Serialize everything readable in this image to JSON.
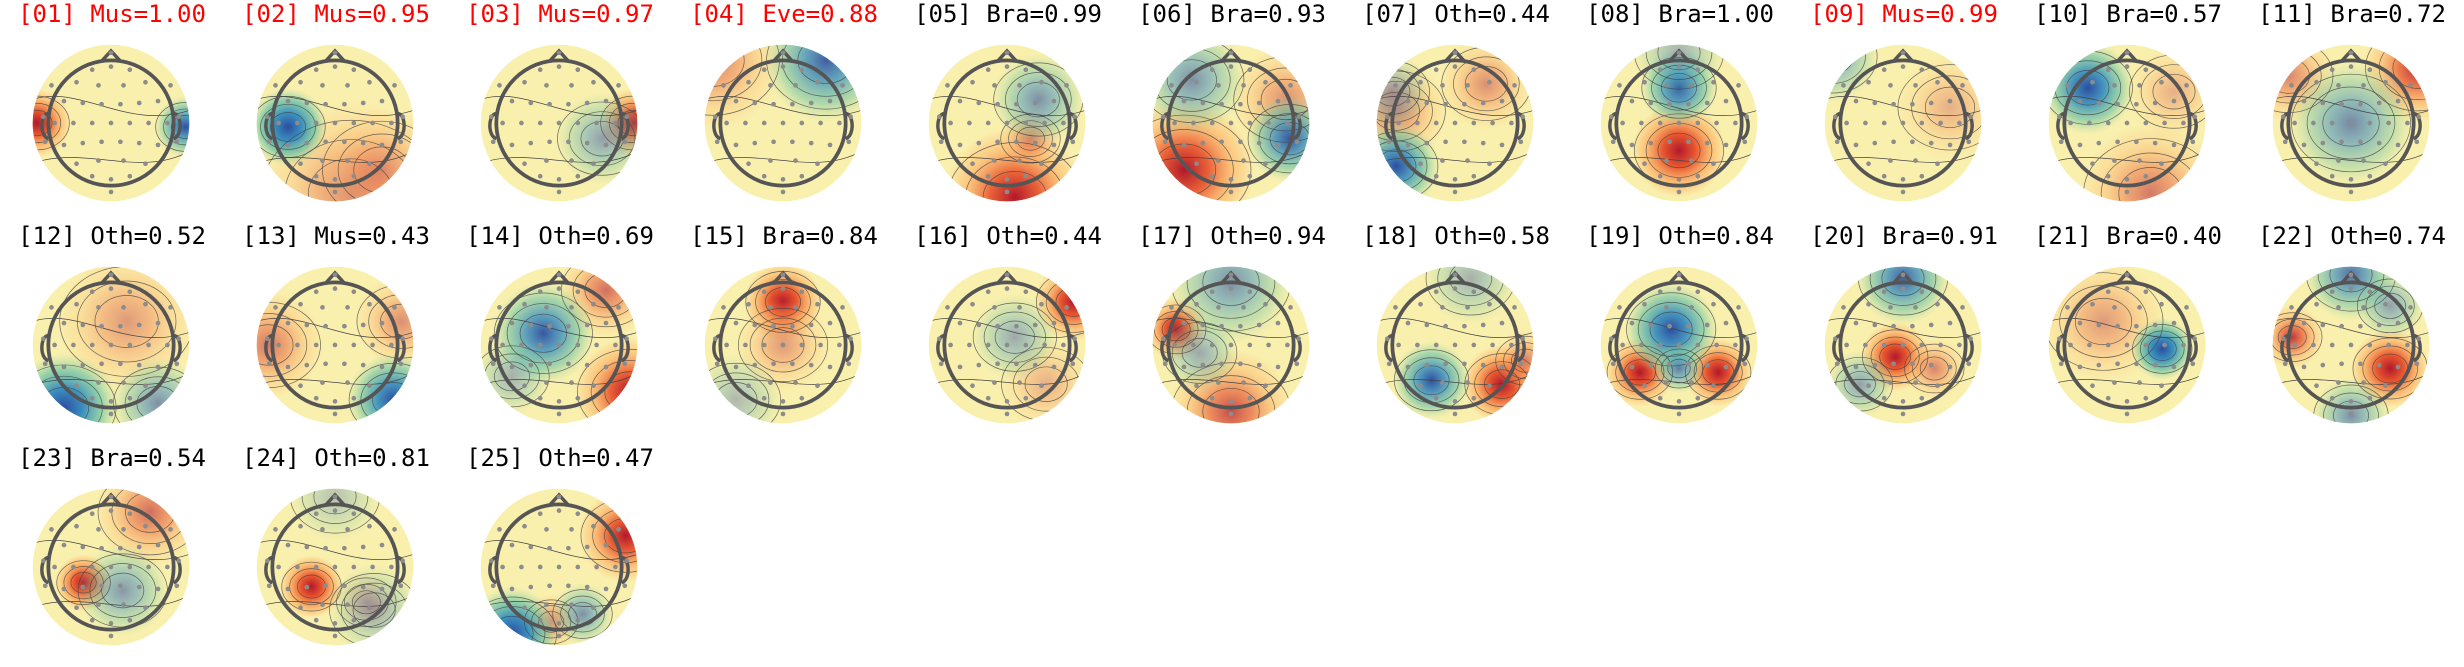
{
  "figure": {
    "components": [
      {
        "label": "[01] Mus=1.00",
        "rejected": true,
        "hot": [
          [
            -0.95,
            0.0,
            1.3,
            0.22
          ]
        ],
        "cold": [
          [
            0.95,
            0.05,
            1.0,
            0.2
          ]
        ]
      },
      {
        "label": "[02] Mus=0.95",
        "rejected": true,
        "hot": [
          [
            0.2,
            0.9,
            0.45,
            0.6
          ],
          [
            0.6,
            0.6,
            0.35,
            0.4
          ]
        ],
        "cold": [
          [
            -0.6,
            0.05,
            1.3,
            0.25
          ]
        ]
      },
      {
        "label": "[03] Mus=0.97",
        "rejected": true,
        "hot": [
          [
            0.95,
            0.0,
            1.3,
            0.22
          ]
        ],
        "cold": [
          [
            0.55,
            0.2,
            0.5,
            0.3
          ]
        ]
      },
      {
        "label": "[04] Eve=0.88",
        "rejected": true,
        "hot": [
          [
            -0.9,
            -0.8,
            0.5,
            0.45
          ]
        ],
        "cold": [
          [
            0.55,
            -0.8,
            0.9,
            0.4
          ]
        ]
      },
      {
        "label": "[05] Bra=0.99",
        "rejected": false,
        "hot": [
          [
            0.1,
            0.95,
            1.1,
            0.45
          ],
          [
            0.3,
            0.2,
            0.5,
            0.2
          ]
        ],
        "cold": [
          [
            0.4,
            -0.3,
            0.6,
            0.3
          ]
        ]
      },
      {
        "label": "[06] Bra=0.93",
        "rejected": false,
        "hot": [
          [
            -0.6,
            0.6,
            1.1,
            0.45
          ],
          [
            0.7,
            -0.3,
            0.45,
            0.35
          ]
        ],
        "cold": [
          [
            0.75,
            0.2,
            0.95,
            0.28
          ],
          [
            -0.5,
            -0.55,
            0.6,
            0.35
          ]
        ]
      },
      {
        "label": "[07] Oth=0.44",
        "rejected": false,
        "hot": [
          [
            -0.75,
            -0.15,
            0.5,
            0.33
          ],
          [
            0.4,
            -0.5,
            0.45,
            0.3
          ]
        ],
        "cold": [
          [
            -0.75,
            0.55,
            1.05,
            0.28
          ],
          [
            -0.8,
            -0.4,
            0.4,
            0.25
          ]
        ]
      },
      {
        "label": "[08] Bra=1.00",
        "rejected": false,
        "hot": [
          [
            0.0,
            0.35,
            1.35,
            0.3
          ]
        ],
        "cold": [
          [
            0.0,
            -0.45,
            1.0,
            0.25
          ],
          [
            0.0,
            -0.9,
            0.4,
            0.3
          ]
        ]
      },
      {
        "label": "[09] Mus=0.99",
        "rejected": true,
        "hot": [
          [
            0.6,
            -0.2,
            0.3,
            0.35
          ]
        ],
        "cold": [
          [
            -0.9,
            -0.85,
            0.6,
            0.3
          ]
        ]
      },
      {
        "label": "[10] Bra=0.57",
        "rejected": false,
        "hot": [
          [
            0.3,
            0.9,
            0.55,
            0.45
          ],
          [
            0.6,
            -0.4,
            0.3,
            0.3
          ]
        ],
        "cold": [
          [
            -0.5,
            -0.45,
            1.1,
            0.3
          ]
        ]
      },
      {
        "label": "[11] Bra=0.72",
        "rejected": false,
        "hot": [
          [
            0.85,
            -0.7,
            0.9,
            0.35
          ],
          [
            -0.8,
            -0.6,
            0.5,
            0.3
          ]
        ],
        "cold": [
          [
            0.0,
            0.0,
            0.65,
            0.4
          ]
        ]
      },
      {
        "label": "[12] Oth=0.52",
        "rejected": false,
        "hot": [
          [
            0.2,
            -0.3,
            0.4,
            0.45
          ]
        ],
        "cold": [
          [
            -0.6,
            0.8,
            1.2,
            0.35
          ],
          [
            0.6,
            0.75,
            0.6,
            0.3
          ]
        ]
      },
      {
        "label": "[13] Mus=0.43",
        "rejected": false,
        "hot": [
          [
            -0.85,
            0.0,
            0.55,
            0.35
          ],
          [
            0.85,
            -0.3,
            0.45,
            0.3
          ]
        ],
        "cold": [
          [
            0.75,
            0.7,
            1.1,
            0.3
          ]
        ]
      },
      {
        "label": "[14] Oth=0.69",
        "rejected": false,
        "hot": [
          [
            0.9,
            0.6,
            1.1,
            0.35
          ],
          [
            0.6,
            -0.7,
            0.6,
            0.3
          ]
        ],
        "cold": [
          [
            -0.2,
            -0.15,
            0.95,
            0.33
          ],
          [
            -0.6,
            0.4,
            0.4,
            0.25
          ]
        ]
      },
      {
        "label": "[15] Bra=0.84",
        "rejected": false,
        "hot": [
          [
            0.0,
            -0.55,
            1.25,
            0.25
          ],
          [
            0.0,
            0.0,
            0.4,
            0.3
          ]
        ],
        "cold": [
          [
            -0.6,
            0.7,
            0.35,
            0.3
          ]
        ]
      },
      {
        "label": "[16] Oth=0.44",
        "rejected": false,
        "hot": [
          [
            0.85,
            -0.55,
            1.15,
            0.25
          ],
          [
            0.5,
            0.5,
            0.3,
            0.3
          ]
        ],
        "cold": [
          [
            0.1,
            -0.1,
            0.45,
            0.28
          ]
        ]
      },
      {
        "label": "[17] Oth=0.94",
        "rejected": false,
        "hot": [
          [
            -0.7,
            -0.2,
            1.2,
            0.2
          ],
          [
            0.0,
            0.85,
            0.75,
            0.4
          ]
        ],
        "cold": [
          [
            0.0,
            -0.8,
            0.6,
            0.4
          ],
          [
            -0.4,
            0.1,
            0.45,
            0.25
          ]
        ]
      },
      {
        "label": "[18] Oth=0.58",
        "rejected": false,
        "hot": [
          [
            0.6,
            0.5,
            1.4,
            0.25
          ],
          [
            0.9,
            0.2,
            0.5,
            0.2
          ]
        ],
        "cold": [
          [
            -0.3,
            0.45,
            1.0,
            0.25
          ],
          [
            0.2,
            -0.85,
            0.4,
            0.3
          ]
        ]
      },
      {
        "label": "[19] Oth=0.84",
        "rejected": false,
        "hot": [
          [
            -0.5,
            0.35,
            1.2,
            0.22
          ],
          [
            0.5,
            0.35,
            1.2,
            0.22
          ]
        ],
        "cold": [
          [
            -0.1,
            -0.2,
            1.1,
            0.3
          ],
          [
            0.0,
            0.3,
            0.7,
            0.16
          ]
        ]
      },
      {
        "label": "[20] Bra=0.91",
        "rejected": false,
        "hot": [
          [
            -0.1,
            0.15,
            1.35,
            0.22
          ],
          [
            0.4,
            0.3,
            0.5,
            0.2
          ]
        ],
        "cold": [
          [
            0.0,
            -0.85,
            0.9,
            0.3
          ],
          [
            -0.55,
            0.5,
            0.5,
            0.22
          ]
        ]
      },
      {
        "label": "[21] Bra=0.40",
        "rejected": false,
        "hot": [
          [
            -0.3,
            -0.3,
            0.4,
            0.4
          ]
        ],
        "cold": [
          [
            0.45,
            0.05,
            1.25,
            0.2
          ]
        ]
      },
      {
        "label": "[22] Oth=0.74",
        "rejected": false,
        "hot": [
          [
            0.5,
            0.3,
            1.3,
            0.25
          ],
          [
            -0.75,
            -0.1,
            0.85,
            0.2
          ]
        ],
        "cold": [
          [
            0.0,
            -0.9,
            0.8,
            0.3
          ],
          [
            0.0,
            0.9,
            0.6,
            0.25
          ],
          [
            0.5,
            -0.5,
            0.5,
            0.22
          ]
        ]
      },
      {
        "label": "[23] Bra=0.54",
        "rejected": false,
        "hot": [
          [
            -0.35,
            0.2,
            1.45,
            0.18
          ],
          [
            0.5,
            -0.7,
            0.6,
            0.35
          ]
        ],
        "cold": [
          [
            0.15,
            0.3,
            0.55,
            0.3
          ]
        ]
      },
      {
        "label": "[24] Oth=0.81",
        "rejected": false,
        "hot": [
          [
            -0.3,
            0.25,
            1.45,
            0.2
          ],
          [
            0.4,
            0.45,
            0.35,
            0.2
          ]
        ],
        "cold": [
          [
            0.5,
            0.55,
            0.4,
            0.3
          ],
          [
            0.0,
            -0.9,
            0.3,
            0.3
          ]
        ]
      },
      {
        "label": "[25] Oth=0.47",
        "rejected": false,
        "hot": [
          [
            0.85,
            -0.4,
            1.1,
            0.3
          ],
          [
            -0.1,
            0.7,
            0.5,
            0.18
          ]
        ],
        "cold": [
          [
            -0.6,
            0.85,
            1.2,
            0.3
          ],
          [
            0.3,
            0.6,
            0.6,
            0.2
          ]
        ]
      }
    ]
  }
}
